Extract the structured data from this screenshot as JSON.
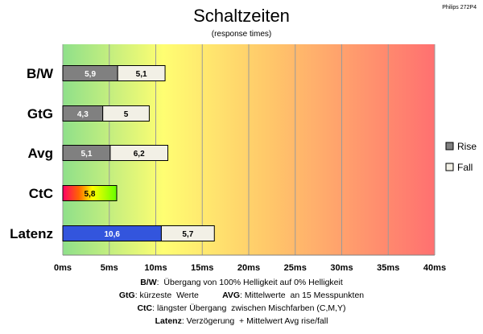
{
  "corner_label": "Philips 272P4",
  "chart_data": {
    "type": "bar",
    "orientation": "horizontal",
    "stacked": true,
    "title": "Schaltzeiten",
    "subtitle": "(response times)",
    "categories": [
      "B/W",
      "GtG",
      "Avg",
      "CtC",
      "Latenz"
    ],
    "series": [
      {
        "name": "Rise",
        "values": [
          5.9,
          4.3,
          5.1,
          5.8,
          10.6
        ],
        "labels": [
          "5,9",
          "4,3",
          "5,1",
          "5,8",
          "10,6"
        ],
        "color": "#808080"
      },
      {
        "name": "Fall",
        "values": [
          5.1,
          5,
          6.2,
          null,
          5.7
        ],
        "labels": [
          "5,1",
          "5",
          "6,2",
          "",
          "5,7"
        ],
        "color": "#f2f0e6"
      }
    ],
    "special_colors": {
      "CtC": "rainbow",
      "Latenz": "#3355dd"
    },
    "xlim": [
      0,
      40
    ],
    "xticks": [
      0,
      5,
      10,
      15,
      20,
      25,
      30,
      35,
      40
    ],
    "tick_labels": [
      "0ms",
      "5ms",
      "10ms",
      "15ms",
      "20ms",
      "25ms",
      "30ms",
      "35ms",
      "40ms"
    ],
    "background": "gradient green-yellow-red",
    "grid": true,
    "legend_position": "right"
  },
  "footnotes": [
    [
      {
        "t": "B/W",
        "b": true
      },
      {
        "t": ":  Übergang von 100% Helligkeit auf 0% Helligkeit",
        "b": false
      }
    ],
    [
      {
        "t": "GtG",
        "b": true
      },
      {
        "t": ": kürzeste  Werte          ",
        "b": false
      },
      {
        "t": "AVG",
        "b": true
      },
      {
        "t": ": Mittelwerte  an 15 Messpunkten",
        "b": false
      }
    ],
    [
      {
        "t": "CtC",
        "b": true
      },
      {
        "t": ": längster Übergang  zwischen Mischfarben (C,M,Y)",
        "b": false
      }
    ],
    [
      {
        "t": "Latenz",
        "b": true
      },
      {
        "t": ": Verzögerung  + Mittelwert Avg rise/fall",
        "b": false
      }
    ]
  ]
}
